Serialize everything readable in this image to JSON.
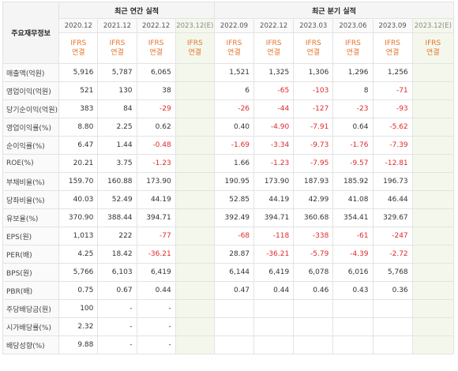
{
  "table": {
    "corner_label": "주요재무정보",
    "group_annual": "최근 연간 실적",
    "group_quarter": "최근 분기 실적",
    "annual_periods": [
      "2020.12",
      "2021.12",
      "2022.12",
      "2023.12(E)"
    ],
    "quarter_periods": [
      "2022.09",
      "2022.12",
      "2023.03",
      "2023.06",
      "2023.09",
      "2023.12(E)"
    ],
    "ifrs_top": "IFRS",
    "ifrs_bottom": "연결",
    "rows": [
      {
        "label": "매출액(억원)",
        "annual": [
          "5,916",
          "5,787",
          "6,065",
          ""
        ],
        "quarter": [
          "1,521",
          "1,325",
          "1,306",
          "1,296",
          "1,256",
          ""
        ]
      },
      {
        "label": "영업이익(억원)",
        "annual": [
          "521",
          "130",
          "38",
          ""
        ],
        "quarter": [
          "6",
          "-65",
          "-103",
          "8",
          "-71",
          ""
        ]
      },
      {
        "label": "당기순이익(억원)",
        "annual": [
          "383",
          "84",
          "-29",
          ""
        ],
        "quarter": [
          "-26",
          "-44",
          "-127",
          "-23",
          "-93",
          ""
        ]
      },
      {
        "label": "영업이익률(%)",
        "annual": [
          "8.80",
          "2.25",
          "0.62",
          ""
        ],
        "quarter": [
          "0.40",
          "-4.90",
          "-7.91",
          "0.64",
          "-5.62",
          ""
        ]
      },
      {
        "label": "순이익률(%)",
        "annual": [
          "6.47",
          "1.44",
          "-0.48",
          ""
        ],
        "quarter": [
          "-1.69",
          "-3.34",
          "-9.73",
          "-1.76",
          "-7.39",
          ""
        ]
      },
      {
        "label": "ROE(%)",
        "annual": [
          "20.21",
          "3.75",
          "-1.23",
          ""
        ],
        "quarter": [
          "1.66",
          "-1.23",
          "-7.95",
          "-9.57",
          "-12.81",
          ""
        ]
      },
      {
        "label": "부채비율(%)",
        "annual": [
          "159.70",
          "160.88",
          "173.90",
          ""
        ],
        "quarter": [
          "190.95",
          "173.90",
          "187.93",
          "185.92",
          "196.73",
          ""
        ]
      },
      {
        "label": "당좌비율(%)",
        "annual": [
          "40.03",
          "52.49",
          "44.19",
          ""
        ],
        "quarter": [
          "52.85",
          "44.19",
          "42.99",
          "41.08",
          "46.44",
          ""
        ]
      },
      {
        "label": "유보율(%)",
        "annual": [
          "370.90",
          "388.44",
          "394.71",
          ""
        ],
        "quarter": [
          "392.49",
          "394.71",
          "360.68",
          "354.41",
          "329.67",
          ""
        ]
      },
      {
        "label": "EPS(원)",
        "annual": [
          "1,013",
          "222",
          "-77",
          ""
        ],
        "quarter": [
          "-68",
          "-118",
          "-338",
          "-61",
          "-247",
          ""
        ]
      },
      {
        "label": "PER(배)",
        "annual": [
          "4.25",
          "18.42",
          "-36.21",
          ""
        ],
        "quarter": [
          "28.87",
          "-36.21",
          "-5.79",
          "-4.39",
          "-2.72",
          ""
        ]
      },
      {
        "label": "BPS(원)",
        "annual": [
          "5,766",
          "6,103",
          "6,419",
          ""
        ],
        "quarter": [
          "6,144",
          "6,419",
          "6,078",
          "6,016",
          "5,768",
          ""
        ]
      },
      {
        "label": "PBR(배)",
        "annual": [
          "0.75",
          "0.67",
          "0.44",
          ""
        ],
        "quarter": [
          "0.47",
          "0.44",
          "0.46",
          "0.43",
          "0.36",
          ""
        ]
      },
      {
        "label": "주당배당금(원)",
        "annual": [
          "100",
          "-",
          "-",
          ""
        ],
        "quarter": [
          "",
          "",
          "",
          "",
          "",
          ""
        ]
      },
      {
        "label": "시가배당률(%)",
        "annual": [
          "2.32",
          "-",
          "-",
          ""
        ],
        "quarter": [
          "",
          "",
          "",
          "",
          "",
          ""
        ]
      },
      {
        "label": "배당성향(%)",
        "annual": [
          "9.88",
          "-",
          "-",
          ""
        ],
        "quarter": [
          "",
          "",
          "",
          "",
          "",
          ""
        ]
      }
    ],
    "section_breaks_before": [
      3,
      6,
      9,
      13
    ]
  },
  "colors": {
    "ifrs_text": "#e4762d",
    "negative_text": "#e0282b",
    "estimate_bg": "#f4f8ec",
    "header_bg": "#f5f5f5"
  }
}
